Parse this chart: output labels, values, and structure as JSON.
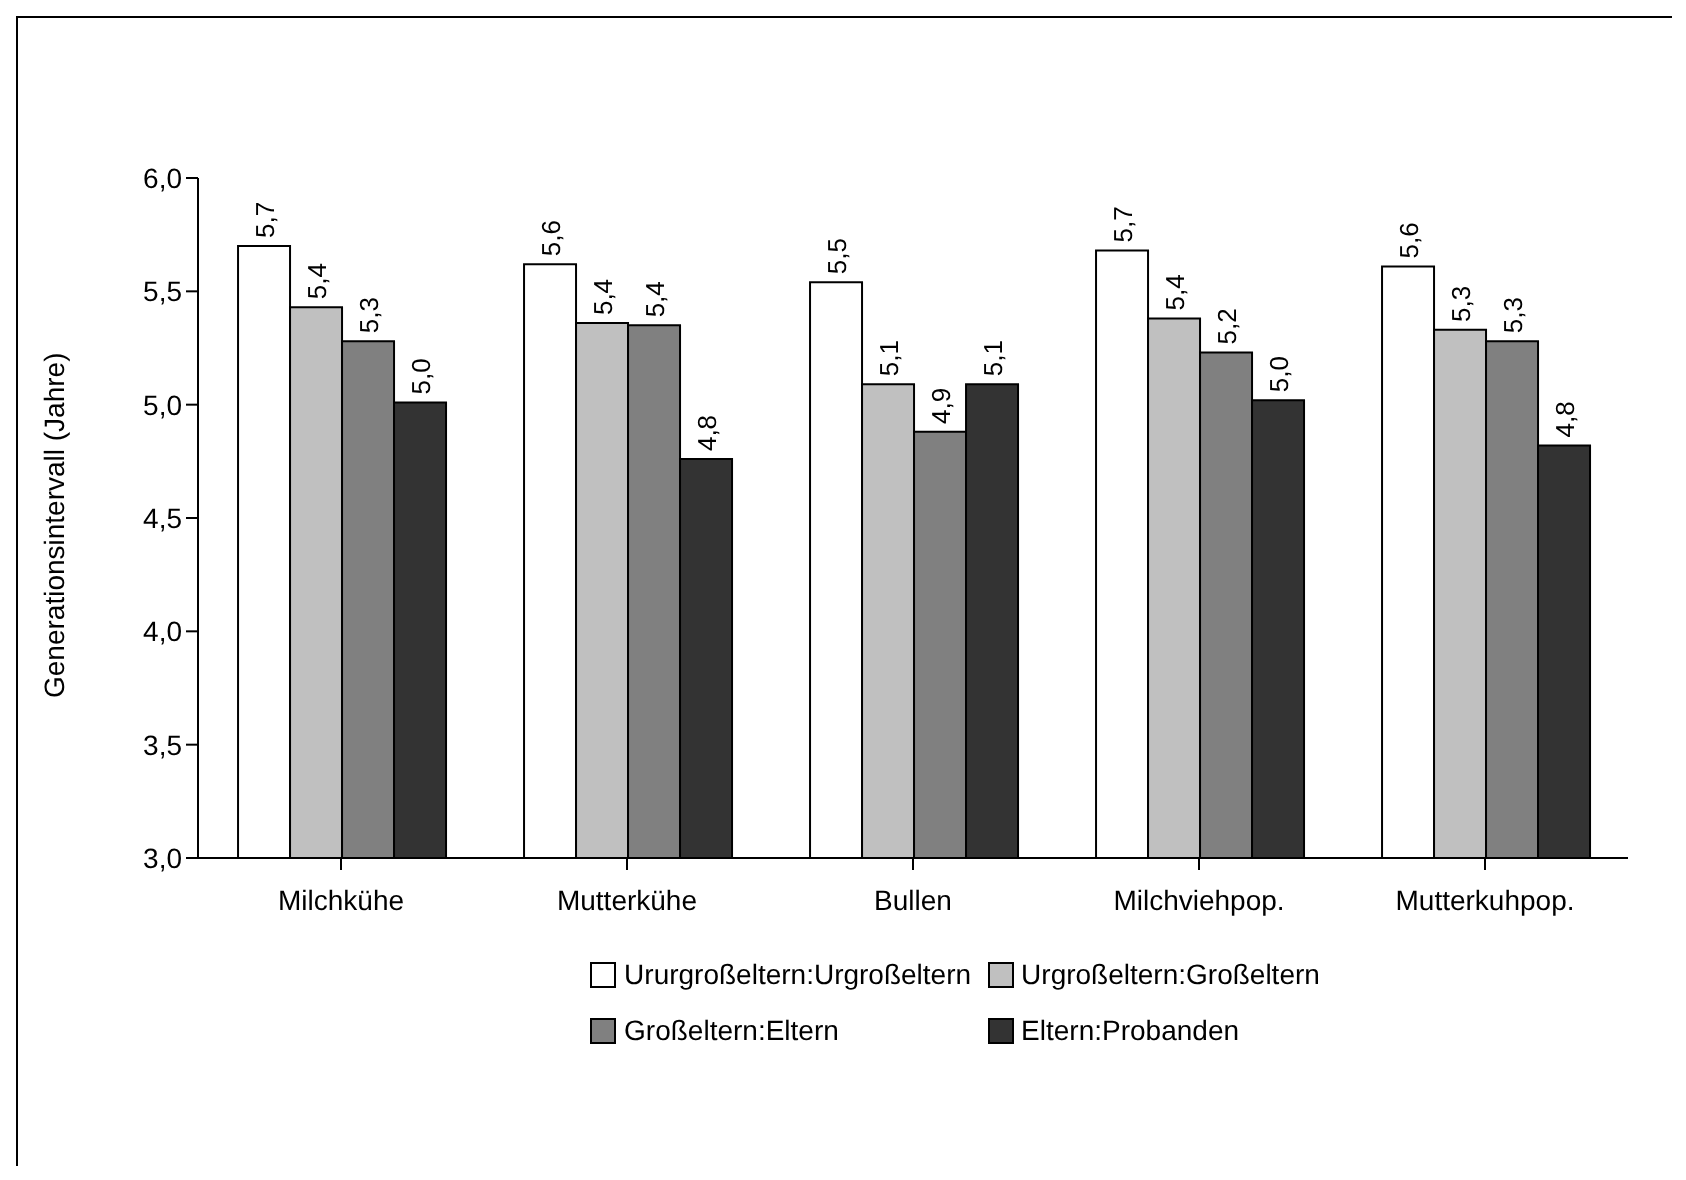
{
  "chart_data": {
    "type": "bar",
    "ylabel": "Generationsintervall (Jahre)",
    "categories": [
      "Milchkühe",
      "Mutterkühe",
      "Bullen",
      "Milchviehpop.",
      "Mutterkuhpop."
    ],
    "series": [
      {
        "name": "Ururgroßeltern:Urgroßeltern",
        "color": "#ffffff",
        "values": [
          5.7,
          5.62,
          5.54,
          5.68,
          5.61
        ],
        "value_labels": [
          "5,7",
          "5,6",
          "5,5",
          "5,7",
          "5,6"
        ]
      },
      {
        "name": "Urgroßeltern:Großeltern",
        "color": "#c0c0c0",
        "values": [
          5.43,
          5.36,
          5.09,
          5.38,
          5.33
        ],
        "value_labels": [
          "5,4",
          "5,4",
          "5,1",
          "5,4",
          "5,3"
        ]
      },
      {
        "name": "Großeltern:Eltern",
        "color": "#808080",
        "values": [
          5.28,
          5.35,
          4.88,
          5.23,
          5.28
        ],
        "value_labels": [
          "5,3",
          "5,4",
          "4,9",
          "5,2",
          "5,3"
        ]
      },
      {
        "name": "Eltern:Probanden",
        "color": "#333333",
        "values": [
          5.01,
          4.76,
          5.09,
          5.02,
          4.82
        ],
        "value_labels": [
          "5,0",
          "4,8",
          "5,1",
          "5,0",
          "4,8"
        ]
      }
    ],
    "ylim": [
      3,
      6
    ],
    "yticks": [
      {
        "value": 3,
        "label": "3,0"
      },
      {
        "value": 3.5,
        "label": "3,5"
      },
      {
        "value": 4,
        "label": "4,0"
      },
      {
        "value": 4.5,
        "label": "4,5"
      },
      {
        "value": 5,
        "label": "5,0"
      },
      {
        "value": 5.5,
        "label": "5,5"
      },
      {
        "value": 6,
        "label": "6,0"
      }
    ],
    "grid": false,
    "legend": "bottom"
  }
}
